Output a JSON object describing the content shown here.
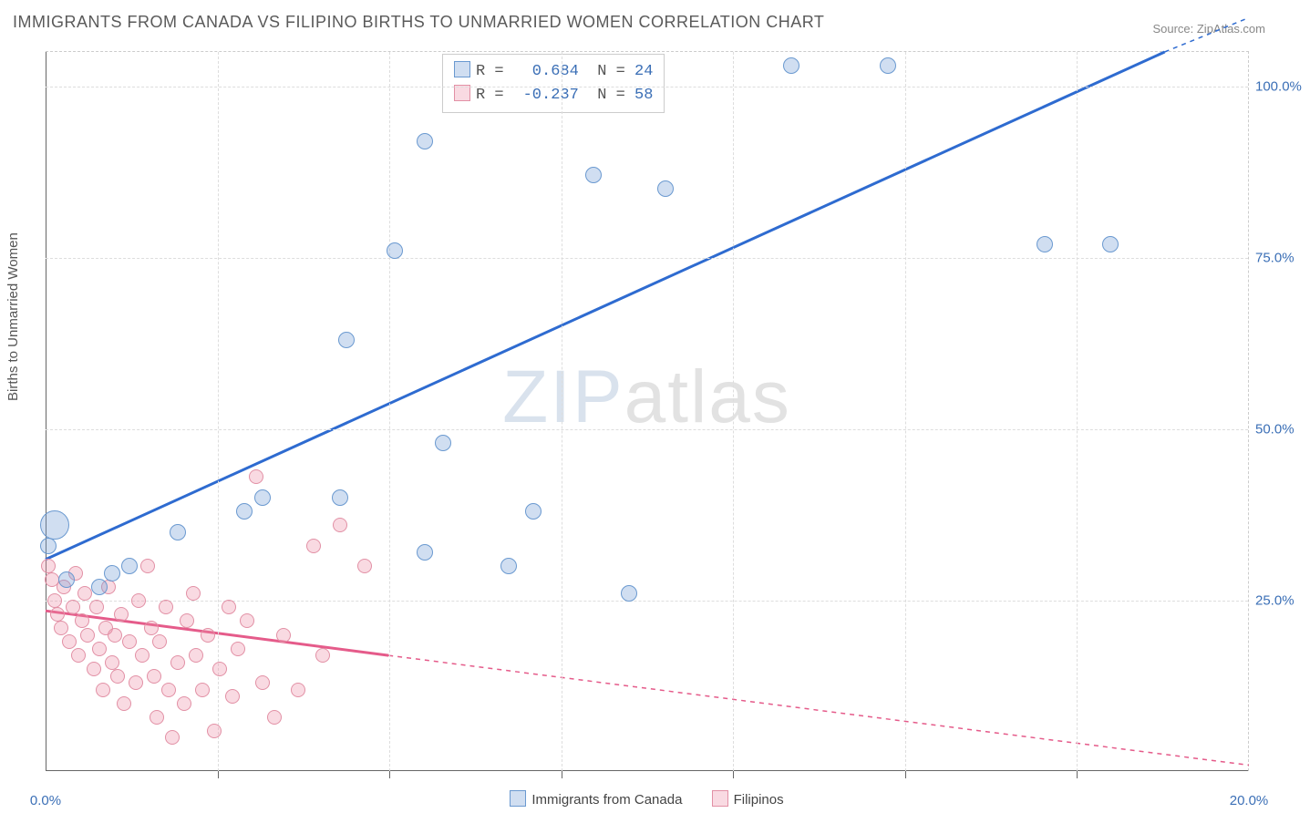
{
  "title": "IMMIGRANTS FROM CANADA VS FILIPINO BIRTHS TO UNMARRIED WOMEN CORRELATION CHART",
  "source_prefix": "Source: ",
  "source_name": "ZipAtlas.com",
  "watermark_a": "ZIP",
  "watermark_b": "atlas",
  "ylabel": "Births to Unmarried Women",
  "chart": {
    "type": "scatter",
    "background_color": "#ffffff",
    "xlim": [
      0,
      20
    ],
    "ylim": [
      0,
      105
    ],
    "xtick_labels": [
      "0.0%",
      "20.0%"
    ],
    "xtick_positions": [
      0,
      20
    ],
    "xtick_minor": [
      2.86,
      5.71,
      8.57,
      11.43,
      14.29,
      17.14
    ],
    "ytick_labels": [
      "25.0%",
      "50.0%",
      "75.0%",
      "100.0%"
    ],
    "ytick_positions": [
      25,
      50,
      75,
      100
    ],
    "grid_color": "#dddddd",
    "series": {
      "blue": {
        "label": "Immigrants from Canada",
        "fill": "rgba(120,160,215,0.35)",
        "stroke": "#6a99d0",
        "line_color": "#2e6bd0",
        "r_value": "0.684",
        "n_value": "24",
        "trend_solid": {
          "x1": 0,
          "y1": 31,
          "x2": 18.6,
          "y2": 105
        },
        "trend_dash": {
          "x1": 18.6,
          "y1": 105,
          "x2": 20,
          "y2": 110
        },
        "points": [
          {
            "x": 0.15,
            "y": 36,
            "r": 16
          },
          {
            "x": 0.05,
            "y": 33,
            "r": 9
          },
          {
            "x": 0.35,
            "y": 28,
            "r": 9
          },
          {
            "x": 0.9,
            "y": 27,
            "r": 9
          },
          {
            "x": 1.1,
            "y": 29,
            "r": 9
          },
          {
            "x": 1.4,
            "y": 30,
            "r": 9
          },
          {
            "x": 2.2,
            "y": 35,
            "r": 9
          },
          {
            "x": 3.3,
            "y": 38,
            "r": 9
          },
          {
            "x": 3.6,
            "y": 40,
            "r": 9
          },
          {
            "x": 4.9,
            "y": 40,
            "r": 9
          },
          {
            "x": 5.0,
            "y": 63,
            "r": 9
          },
          {
            "x": 5.8,
            "y": 76,
            "r": 9
          },
          {
            "x": 6.3,
            "y": 92,
            "r": 9
          },
          {
            "x": 6.3,
            "y": 32,
            "r": 9
          },
          {
            "x": 6.6,
            "y": 48,
            "r": 9
          },
          {
            "x": 7.7,
            "y": 30,
            "r": 9
          },
          {
            "x": 8.1,
            "y": 38,
            "r": 9
          },
          {
            "x": 9.1,
            "y": 87,
            "r": 9
          },
          {
            "x": 9.7,
            "y": 26,
            "r": 9
          },
          {
            "x": 10.3,
            "y": 85,
            "r": 9
          },
          {
            "x": 12.4,
            "y": 103,
            "r": 9
          },
          {
            "x": 14.0,
            "y": 103,
            "r": 9
          },
          {
            "x": 16.6,
            "y": 77,
            "r": 9
          },
          {
            "x": 17.7,
            "y": 77,
            "r": 9
          }
        ]
      },
      "pink": {
        "label": "Filipinos",
        "fill": "rgba(235,140,165,0.32)",
        "stroke": "#e290a5",
        "line_color": "#e55b8a",
        "r_value": "-0.237",
        "n_value": "58",
        "trend_solid": {
          "x1": 0,
          "y1": 23.5,
          "x2": 5.7,
          "y2": 17
        },
        "trend_dash": {
          "x1": 5.7,
          "y1": 17,
          "x2": 20,
          "y2": 1
        },
        "points": [
          {
            "x": 0.05,
            "y": 30,
            "r": 8
          },
          {
            "x": 0.1,
            "y": 28,
            "r": 8
          },
          {
            "x": 0.15,
            "y": 25,
            "r": 8
          },
          {
            "x": 0.2,
            "y": 23,
            "r": 8
          },
          {
            "x": 0.25,
            "y": 21,
            "r": 8
          },
          {
            "x": 0.3,
            "y": 27,
            "r": 8
          },
          {
            "x": 0.4,
            "y": 19,
            "r": 8
          },
          {
            "x": 0.45,
            "y": 24,
            "r": 8
          },
          {
            "x": 0.5,
            "y": 29,
            "r": 8
          },
          {
            "x": 0.55,
            "y": 17,
            "r": 8
          },
          {
            "x": 0.6,
            "y": 22,
            "r": 8
          },
          {
            "x": 0.65,
            "y": 26,
            "r": 8
          },
          {
            "x": 0.7,
            "y": 20,
            "r": 8
          },
          {
            "x": 0.8,
            "y": 15,
            "r": 8
          },
          {
            "x": 0.85,
            "y": 24,
            "r": 8
          },
          {
            "x": 0.9,
            "y": 18,
            "r": 8
          },
          {
            "x": 0.95,
            "y": 12,
            "r": 8
          },
          {
            "x": 1.0,
            "y": 21,
            "r": 8
          },
          {
            "x": 1.05,
            "y": 27,
            "r": 8
          },
          {
            "x": 1.1,
            "y": 16,
            "r": 8
          },
          {
            "x": 1.15,
            "y": 20,
            "r": 8
          },
          {
            "x": 1.2,
            "y": 14,
            "r": 8
          },
          {
            "x": 1.25,
            "y": 23,
            "r": 8
          },
          {
            "x": 1.3,
            "y": 10,
            "r": 8
          },
          {
            "x": 1.4,
            "y": 19,
            "r": 8
          },
          {
            "x": 1.5,
            "y": 13,
            "r": 8
          },
          {
            "x": 1.55,
            "y": 25,
            "r": 8
          },
          {
            "x": 1.6,
            "y": 17,
            "r": 8
          },
          {
            "x": 1.7,
            "y": 30,
            "r": 8
          },
          {
            "x": 1.75,
            "y": 21,
            "r": 8
          },
          {
            "x": 1.8,
            "y": 14,
            "r": 8
          },
          {
            "x": 1.85,
            "y": 8,
            "r": 8
          },
          {
            "x": 1.9,
            "y": 19,
            "r": 8
          },
          {
            "x": 2.0,
            "y": 24,
            "r": 8
          },
          {
            "x": 2.05,
            "y": 12,
            "r": 8
          },
          {
            "x": 2.1,
            "y": 5,
            "r": 8
          },
          {
            "x": 2.2,
            "y": 16,
            "r": 8
          },
          {
            "x": 2.3,
            "y": 10,
            "r": 8
          },
          {
            "x": 2.35,
            "y": 22,
            "r": 8
          },
          {
            "x": 2.45,
            "y": 26,
            "r": 8
          },
          {
            "x": 2.5,
            "y": 17,
            "r": 8
          },
          {
            "x": 2.6,
            "y": 12,
            "r": 8
          },
          {
            "x": 2.7,
            "y": 20,
            "r": 8
          },
          {
            "x": 2.8,
            "y": 6,
            "r": 8
          },
          {
            "x": 2.9,
            "y": 15,
            "r": 8
          },
          {
            "x": 3.05,
            "y": 24,
            "r": 8
          },
          {
            "x": 3.1,
            "y": 11,
            "r": 8
          },
          {
            "x": 3.2,
            "y": 18,
            "r": 8
          },
          {
            "x": 3.35,
            "y": 22,
            "r": 8
          },
          {
            "x": 3.5,
            "y": 43,
            "r": 8
          },
          {
            "x": 3.6,
            "y": 13,
            "r": 8
          },
          {
            "x": 3.8,
            "y": 8,
            "r": 8
          },
          {
            "x": 3.95,
            "y": 20,
            "r": 8
          },
          {
            "x": 4.2,
            "y": 12,
            "r": 8
          },
          {
            "x": 4.45,
            "y": 33,
            "r": 8
          },
          {
            "x": 4.6,
            "y": 17,
            "r": 8
          },
          {
            "x": 4.9,
            "y": 36,
            "r": 8
          },
          {
            "x": 5.3,
            "y": 30,
            "r": 8
          }
        ]
      }
    }
  }
}
